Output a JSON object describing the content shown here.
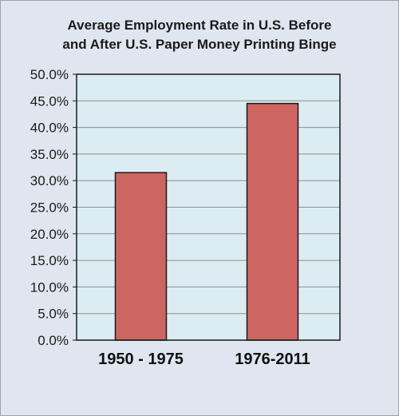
{
  "chart_data": {
    "type": "bar",
    "title_line1": "Average Employment Rate in U.S.  Before",
    "title_line2": "and After U.S. Paper Money Printing Binge",
    "categories": [
      "1950 - 1975",
      "1976-2011"
    ],
    "values": [
      31.5,
      44.5
    ],
    "ylim": [
      0,
      50
    ],
    "yticks": [
      0,
      5,
      10,
      15,
      20,
      25,
      30,
      35,
      40,
      45,
      50
    ],
    "ytick_labels": [
      "0.0%",
      "5.0%",
      "10.0%",
      "15.0%",
      "20.0%",
      "25.0%",
      "30.0%",
      "35.0%",
      "40.0%",
      "45.0%",
      "50.0%"
    ],
    "grid": true,
    "legend": "none",
    "colors": {
      "bar": "#cd6660",
      "bar_edge": "#1a1a1a",
      "plot_bg": "#dcecf3",
      "gridline": "#8f8f8f"
    }
  }
}
